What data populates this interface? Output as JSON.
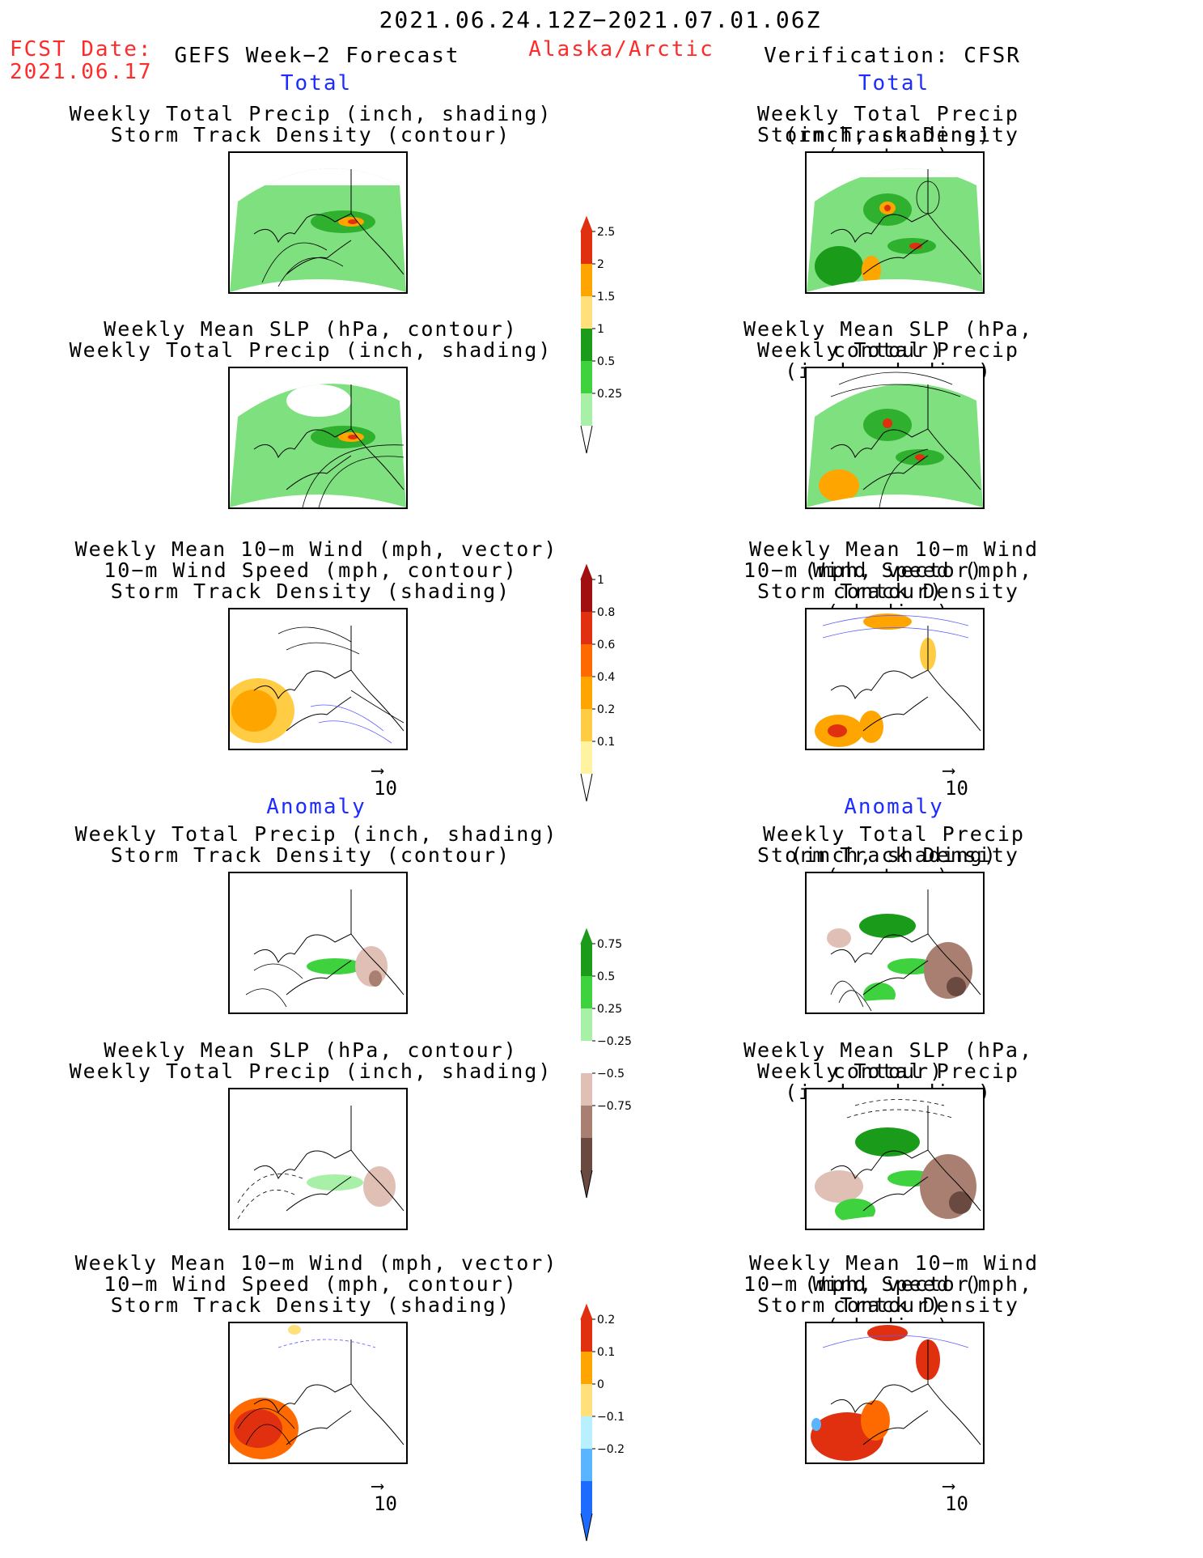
{
  "header": {
    "period": "2021.06.24.12Z−2021.07.01.06Z",
    "fcst_label": "FCST Date:",
    "fcst_date": "2021.06.17",
    "model": "GEFS Week−2 Forecast",
    "region": "Alaska/Arctic",
    "verification": "Verification: CFSR"
  },
  "sections": {
    "total_left": "Total",
    "total_right": "Total",
    "anomaly_left": "Anomaly",
    "anomaly_right": "Anomaly"
  },
  "titles": {
    "precip_storm": [
      "Weekly Total Precip (inch, shading)",
      "Storm Track Density (contour)"
    ],
    "slp_precip": [
      "Weekly Mean SLP (hPa, contour)",
      "Weekly Total Precip (inch, shading)"
    ],
    "wind": [
      "Weekly Mean 10−m Wind (mph, vector)",
      "10−m Wind Speed (mph, contour)",
      "Storm Track Density (shading)"
    ]
  },
  "vector_ref": "10",
  "colorbars": {
    "precip_total": {
      "labels": [
        "2.5",
        "2",
        "1.5",
        "1",
        "0.5",
        "0.25"
      ],
      "colors": [
        "#e03010",
        "#ffa500",
        "#ffe07a",
        "#1a9c1a",
        "#3ed23e",
        "#a8f0a8"
      ]
    },
    "storm_total": {
      "labels": [
        "1",
        "0.8",
        "0.6",
        "0.4",
        "0.2",
        "0.1"
      ],
      "colors": [
        "#a01010",
        "#e03010",
        "#ff6a00",
        "#ffa500",
        "#ffcc44",
        "#fff2a0"
      ]
    },
    "precip_anom": {
      "labels": [
        "0.75",
        "0.5",
        "0.25",
        "−0.25",
        "−0.5",
        "−0.75"
      ],
      "colors": [
        "#1a9c1a",
        "#3ed23e",
        "#a8f0a8",
        "#ffffff",
        "#e0c0b4",
        "#a87f70",
        "#6a4a40"
      ]
    },
    "storm_anom": {
      "labels": [
        "0.2",
        "0.1",
        "0",
        "−0.1",
        "−0.2"
      ],
      "colors": [
        "#e03010",
        "#ffa500",
        "#ffe07a",
        "#b8f0ff",
        "#5ab4ff",
        "#1d6cff"
      ]
    }
  }
}
